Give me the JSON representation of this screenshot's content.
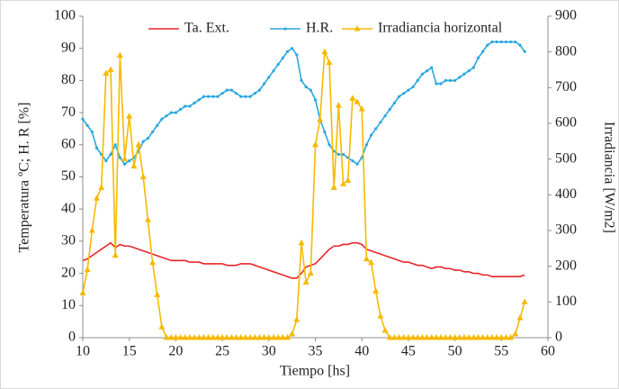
{
  "chart_data": {
    "type": "line",
    "xlabel": "Tiempo [hs]",
    "ylabel": "Temperatura ºC; H. R [%]",
    "y2label": "Irradiancia [W/m2]",
    "xlim": [
      10,
      60
    ],
    "xticks": [
      10,
      15,
      20,
      25,
      30,
      35,
      40,
      45,
      50,
      55,
      60
    ],
    "ylim": [
      0,
      100
    ],
    "yticks": [
      0,
      10,
      20,
      30,
      40,
      50,
      60,
      70,
      80,
      90,
      100
    ],
    "y2lim": [
      0,
      900
    ],
    "y2ticks": [
      0,
      100,
      200,
      300,
      400,
      500,
      600,
      700,
      800,
      900
    ],
    "grid": false,
    "legend": "top",
    "x": [
      10,
      10.5,
      11,
      11.5,
      12,
      12.5,
      13,
      13.5,
      14,
      14.5,
      15,
      15.5,
      16,
      16.5,
      17,
      17.5,
      18,
      18.5,
      19,
      19.5,
      20,
      20.5,
      21,
      21.5,
      22,
      22.5,
      23,
      23.5,
      24,
      24.5,
      25,
      25.5,
      26,
      26.5,
      27,
      27.5,
      28,
      28.5,
      29,
      29.5,
      30,
      30.5,
      31,
      31.5,
      32,
      32.5,
      33,
      33.5,
      34,
      34.5,
      35,
      35.5,
      36,
      36.5,
      37,
      37.5,
      38,
      38.5,
      39,
      39.5,
      40,
      40.5,
      41,
      41.5,
      42,
      42.5,
      43,
      43.5,
      44,
      44.5,
      45,
      45.5,
      46,
      46.5,
      47,
      47.5,
      48,
      48.5,
      49,
      49.5,
      50,
      50.5,
      51,
      51.5,
      52,
      52.5,
      53,
      53.5,
      54,
      54.5,
      55,
      55.5,
      56,
      56.5,
      57,
      57.5
    ],
    "series": [
      {
        "name": "Ta. Ext.",
        "color": "#e8262a",
        "marker": "none",
        "values": [
          24,
          24.5,
          25.5,
          26.5,
          27.5,
          28.5,
          29.5,
          28,
          29,
          28.5,
          28.5,
          28,
          27.5,
          27,
          26.5,
          26,
          25.5,
          25,
          24.5,
          24,
          24,
          24,
          24,
          23.5,
          23.5,
          23.5,
          23,
          23,
          23,
          23,
          23,
          22.5,
          22.5,
          22.5,
          23,
          23,
          23,
          22.5,
          22,
          21.5,
          21,
          20.5,
          20,
          19.5,
          19,
          18.5,
          18.5,
          20,
          22,
          22.5,
          23,
          24.5,
          26,
          27.5,
          28.5,
          28.5,
          29,
          29,
          29.5,
          29.5,
          29,
          27.5,
          27,
          26.5,
          26,
          25.5,
          25,
          24.5,
          24,
          23.5,
          23.5,
          23,
          22.5,
          22.5,
          22,
          21.5,
          22,
          22,
          21.5,
          21.5,
          21,
          21,
          20.5,
          20.5,
          20,
          20,
          19.5,
          19.5,
          19,
          19,
          19,
          19,
          19,
          19,
          19,
          19.5
        ]
      },
      {
        "name": "H.R.",
        "color": "#2aa7df",
        "marker": "dot",
        "values": [
          68,
          66,
          64,
          59,
          57,
          55,
          57,
          60,
          56,
          54,
          55,
          56,
          58,
          61,
          62,
          64,
          66,
          68,
          69,
          70,
          70,
          71,
          72,
          72,
          73,
          74,
          75,
          75,
          75,
          75,
          76,
          77,
          77,
          76,
          75,
          75,
          75,
          76,
          77,
          79,
          81,
          83,
          85,
          87,
          89,
          90,
          88,
          80,
          78,
          77,
          74,
          68,
          64,
          60,
          58,
          57,
          57,
          56,
          55,
          54,
          56,
          60,
          63,
          65,
          67,
          69,
          71,
          73,
          75,
          76,
          77,
          78,
          80,
          82,
          83,
          84,
          79,
          79,
          80,
          80,
          80,
          81,
          82,
          83,
          84,
          87,
          89,
          91,
          92,
          92,
          92,
          92,
          92,
          92,
          91,
          89
        ]
      },
      {
        "name": "Irradiancia horizontal",
        "color": "#f7b900",
        "marker": "triangle",
        "axis": "y2",
        "values": [
          125,
          190,
          300,
          390,
          420,
          740,
          750,
          230,
          790,
          500,
          620,
          480,
          540,
          450,
          330,
          210,
          120,
          30,
          0,
          0,
          0,
          0,
          0,
          0,
          0,
          0,
          0,
          0,
          0,
          0,
          0,
          0,
          0,
          0,
          0,
          0,
          0,
          0,
          0,
          0,
          0,
          0,
          0,
          0,
          0,
          10,
          50,
          265,
          155,
          180,
          540,
          610,
          800,
          770,
          420,
          650,
          430,
          440,
          670,
          660,
          640,
          220,
          210,
          130,
          60,
          20,
          0,
          0,
          0,
          0,
          0,
          0,
          0,
          0,
          0,
          0,
          0,
          0,
          0,
          0,
          0,
          0,
          0,
          0,
          0,
          0,
          0,
          0,
          0,
          0,
          0,
          0,
          0,
          10,
          55,
          100
        ]
      }
    ]
  }
}
